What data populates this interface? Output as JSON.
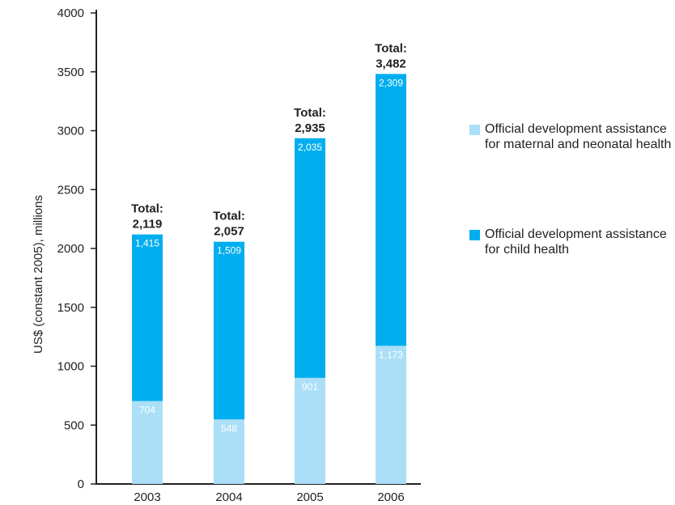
{
  "chart_data": {
    "type": "bar",
    "stacked": true,
    "categories": [
      "2003",
      "2004",
      "2005",
      "2006"
    ],
    "series": [
      {
        "name": "Official development assistance for maternal and neonatal health",
        "color": "#abdff7",
        "values": [
          704,
          548,
          901,
          1173
        ],
        "labels": [
          "704",
          "548",
          "901",
          "1,173"
        ]
      },
      {
        "name": "Official development assistance for child health",
        "color": "#00aeef",
        "values": [
          1415,
          1509,
          2035,
          2309
        ],
        "labels": [
          "1,415",
          "1,509",
          "2,035",
          "2,309"
        ]
      }
    ],
    "totals": [
      {
        "label": "Total:",
        "value": "2,119"
      },
      {
        "label": "Total:",
        "value": "2,057"
      },
      {
        "label": "Total:",
        "value": "2,935"
      },
      {
        "label": "Total:",
        "value": "3,482"
      }
    ],
    "ylabel": "US$ (constant 2005), millions",
    "xlabel": "",
    "ylim": [
      0,
      4000
    ],
    "yticks": [
      "0",
      "500",
      "1000",
      "1500",
      "2000",
      "2500",
      "3000",
      "3500",
      "4000"
    ],
    "grid": false,
    "legend_position": "right"
  }
}
